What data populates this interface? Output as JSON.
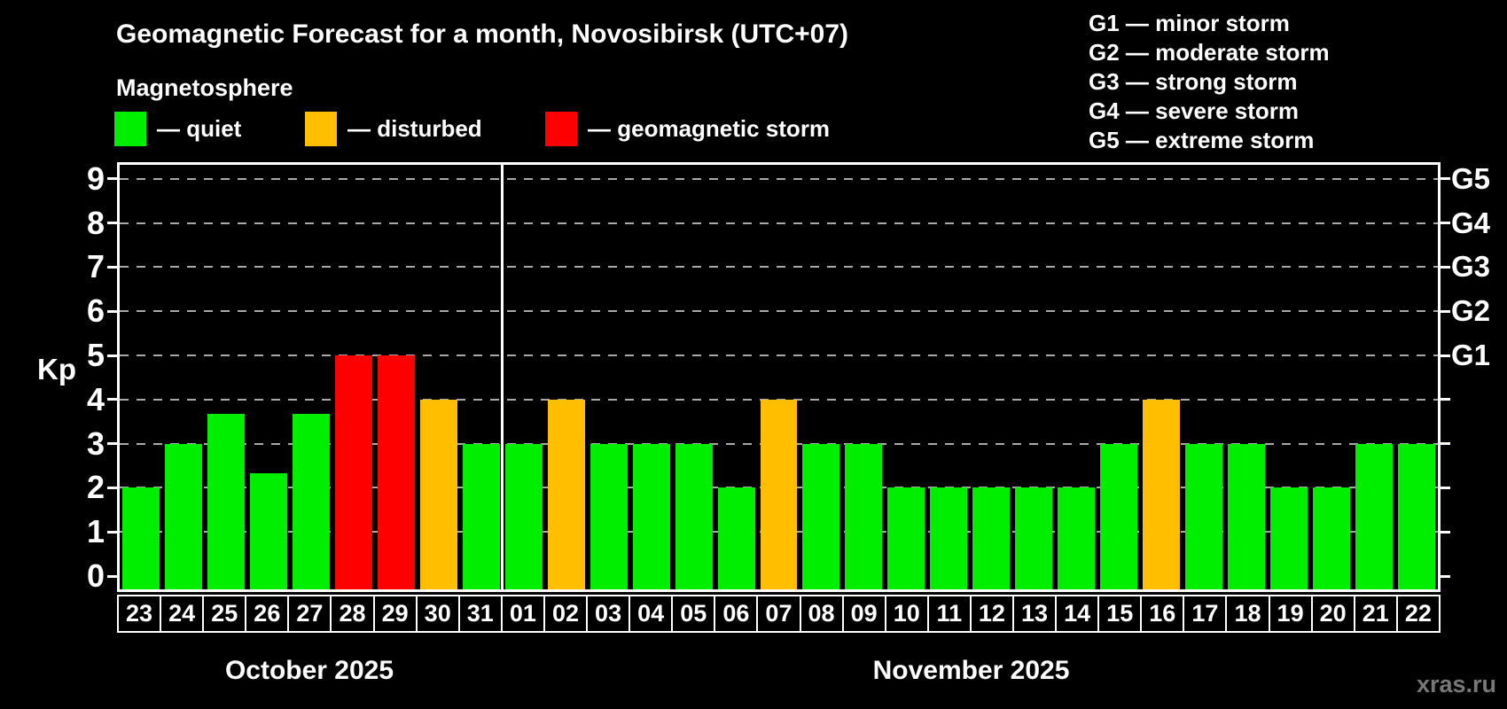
{
  "header": {
    "title": "Geomagnetic Forecast for a month, Novosibirsk (UTC+07)",
    "subtitle": "Magnetosphere"
  },
  "legend": {
    "items": [
      {
        "name": "quiet",
        "label": "— quiet",
        "color": "#00ee00"
      },
      {
        "name": "disturbed",
        "label": "— disturbed",
        "color": "#ffbf00"
      },
      {
        "name": "storm",
        "label": "— geomagnetic storm",
        "color": "#ff0000"
      }
    ]
  },
  "g_legend": {
    "items": [
      "G1 — minor storm",
      "G2 — moderate storm",
      "G3 — strong storm",
      "G4 — severe storm",
      "G5 — extreme storm"
    ]
  },
  "axes": {
    "y_label": "Kp",
    "y_ticks": [
      0,
      1,
      2,
      3,
      4,
      5,
      6,
      7,
      8,
      9
    ],
    "right_axis_labels": [
      {
        "label": "G1",
        "kp": 5
      },
      {
        "label": "G2",
        "kp": 6
      },
      {
        "label": "G3",
        "kp": 7
      },
      {
        "label": "G4",
        "kp": 8
      },
      {
        "label": "G5",
        "kp": 9
      }
    ]
  },
  "watermark": "xras.ru",
  "chart_data": {
    "type": "bar",
    "title": "Geomagnetic Forecast for a month, Novosibirsk (UTC+07)",
    "xlabel": "",
    "ylabel": "Kp",
    "ylim": [
      0,
      9
    ],
    "grid": "horizontal dashed lines at Kp 1-9",
    "legend_position": "top-left",
    "categories": [
      "23",
      "24",
      "25",
      "26",
      "27",
      "28",
      "29",
      "30",
      "31",
      "01",
      "02",
      "03",
      "04",
      "05",
      "06",
      "07",
      "08",
      "09",
      "10",
      "11",
      "12",
      "13",
      "14",
      "15",
      "16",
      "17",
      "18",
      "19",
      "20",
      "21",
      "22"
    ],
    "values": [
      2,
      3,
      3.67,
      2.33,
      3.67,
      5,
      5,
      4,
      3,
      3,
      4,
      3,
      3,
      3,
      2,
      4,
      3,
      3,
      2,
      2,
      2,
      2,
      2,
      3,
      4,
      3,
      3,
      2,
      2,
      3,
      3
    ],
    "month_groups": [
      {
        "label": "October 2025",
        "count": 9
      },
      {
        "label": "November 2025",
        "count": 22
      }
    ],
    "color_thresholds": {
      "storm_min_kp": 5,
      "disturbed_min_kp": 4
    }
  }
}
